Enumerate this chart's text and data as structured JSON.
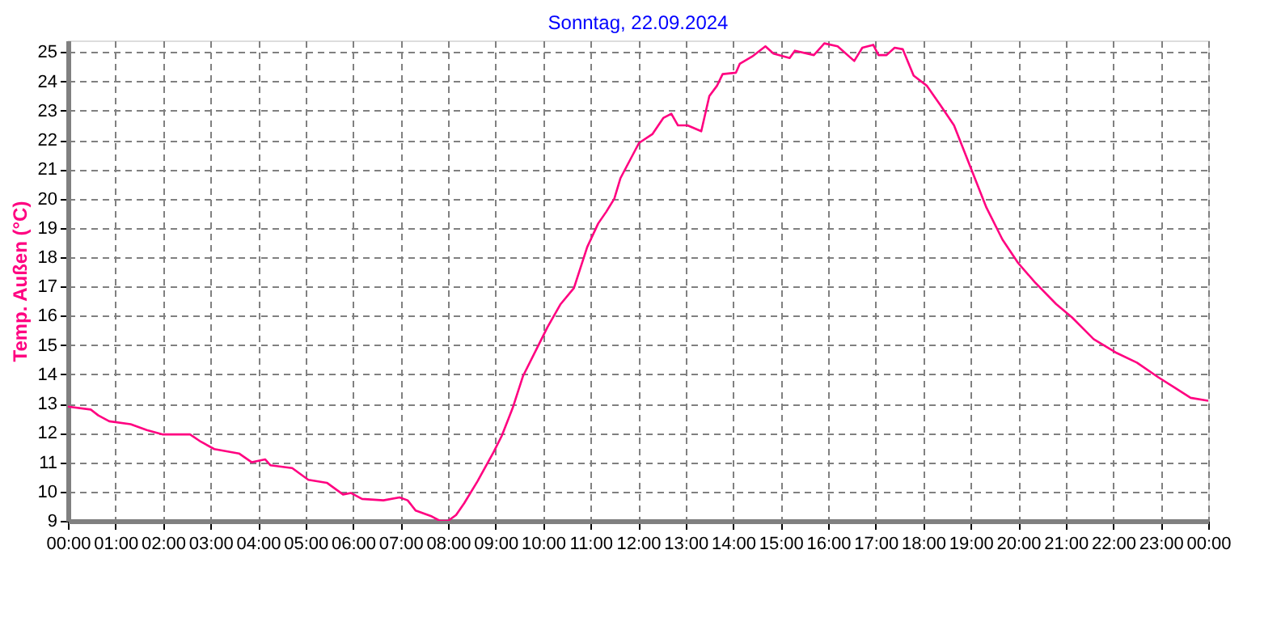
{
  "chart_data": {
    "type": "line",
    "title": "Sonntag, 22.09.2024",
    "ylabel": "Temp. Außen  (°C)",
    "xlim": [
      0,
      24
    ],
    "ylim": [
      9,
      25.4
    ],
    "xticks": [
      {
        "value": 0,
        "label": "00:00"
      },
      {
        "value": 1,
        "label": "01:00"
      },
      {
        "value": 2,
        "label": "02:00"
      },
      {
        "value": 3,
        "label": "03:00"
      },
      {
        "value": 4,
        "label": "04:00"
      },
      {
        "value": 5,
        "label": "05:00"
      },
      {
        "value": 6,
        "label": "06:00"
      },
      {
        "value": 7,
        "label": "07:00"
      },
      {
        "value": 8,
        "label": "08:00"
      },
      {
        "value": 9,
        "label": "09:00"
      },
      {
        "value": 10,
        "label": "10:00"
      },
      {
        "value": 11,
        "label": "11:00"
      },
      {
        "value": 12,
        "label": "12:00"
      },
      {
        "value": 13,
        "label": "13:00"
      },
      {
        "value": 14,
        "label": "14:00"
      },
      {
        "value": 15,
        "label": "15:00"
      },
      {
        "value": 16,
        "label": "16:00"
      },
      {
        "value": 17,
        "label": "17:00"
      },
      {
        "value": 18,
        "label": "18:00"
      },
      {
        "value": 19,
        "label": "19:00"
      },
      {
        "value": 20,
        "label": "20:00"
      },
      {
        "value": 21,
        "label": "21:00"
      },
      {
        "value": 22,
        "label": "22:00"
      },
      {
        "value": 23,
        "label": "23:00"
      },
      {
        "value": 24,
        "label": "00:00"
      }
    ],
    "yticks": [
      9,
      10,
      11,
      12,
      13,
      14,
      15,
      16,
      17,
      18,
      19,
      20,
      21,
      22,
      23,
      24,
      25
    ],
    "grid": true,
    "line_style": "solid",
    "marker": "none",
    "series": [
      {
        "color": "#ff0080",
        "x": [
          0,
          0.48,
          0.64,
          0.87,
          1.32,
          1.66,
          2.0,
          2.57,
          2.8,
          3.08,
          3.6,
          3.87,
          4.15,
          4.26,
          4.72,
          5.06,
          5.45,
          5.79,
          5.96,
          6.19,
          6.64,
          6.98,
          7.15,
          7.32,
          7.66,
          7.83,
          8.0,
          8.17,
          8.34,
          8.62,
          8.96,
          9.13,
          9.36,
          9.58,
          9.92,
          10.09,
          10.37,
          10.65,
          10.93,
          11.16,
          11.33,
          11.5,
          11.63,
          12.02,
          12.3,
          12.53,
          12.7,
          12.84,
          13.04,
          13.33,
          13.5,
          13.66,
          13.78,
          14.06,
          14.14,
          14.4,
          14.68,
          14.85,
          15.19,
          15.3,
          15.7,
          15.92,
          16.2,
          16.55,
          16.72,
          16.95,
          17.06,
          17.23,
          17.4,
          17.57,
          17.8,
          18.08,
          18.36,
          18.65,
          18.99,
          19.33,
          19.67,
          20.0,
          20.35,
          20.8,
          21.13,
          21.59,
          22.05,
          22.5,
          22.95,
          23.29,
          23.63,
          24.0
        ],
        "values": [
          12.9,
          12.8,
          12.6,
          12.4,
          12.3,
          12.1,
          11.95,
          11.95,
          11.7,
          11.45,
          11.3,
          11.0,
          11.1,
          10.9,
          10.8,
          10.4,
          10.3,
          9.9,
          9.95,
          9.75,
          9.7,
          9.8,
          9.7,
          9.35,
          9.15,
          9.0,
          9.0,
          9.2,
          9.6,
          10.35,
          11.35,
          11.9,
          12.85,
          13.95,
          15.05,
          15.6,
          16.4,
          16.95,
          18.35,
          19.15,
          19.55,
          20.0,
          20.7,
          21.9,
          22.2,
          22.75,
          22.9,
          22.5,
          22.5,
          22.3,
          23.5,
          23.85,
          24.25,
          24.3,
          24.6,
          24.85,
          25.2,
          24.95,
          24.8,
          25.05,
          24.9,
          25.3,
          25.2,
          24.7,
          25.15,
          25.25,
          24.9,
          24.9,
          25.15,
          25.1,
          24.2,
          23.85,
          23.2,
          22.5,
          21.1,
          19.7,
          18.6,
          17.8,
          17.15,
          16.4,
          15.95,
          15.2,
          14.75,
          14.4,
          13.9,
          13.55,
          13.2,
          13.1
        ]
      }
    ]
  }
}
